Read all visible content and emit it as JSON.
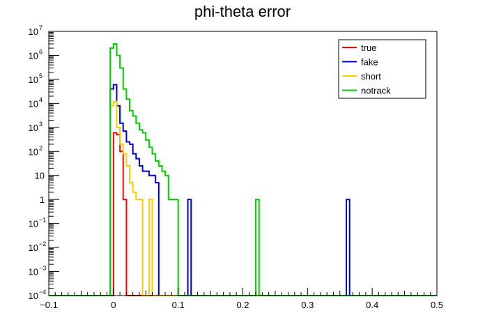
{
  "chart_data": {
    "type": "line",
    "title": "phi-theta error",
    "xlabel": "",
    "ylabel": "",
    "xlim": [
      -0.1,
      0.5
    ],
    "ylim_log10": [
      -4,
      7
    ],
    "y_scale": "log",
    "x_ticks": [
      {
        "value": -0.1,
        "label": "−0.1"
      },
      {
        "value": 0,
        "label": "0"
      },
      {
        "value": 0.1,
        "label": "0.1"
      },
      {
        "value": 0.2,
        "label": "0.2"
      },
      {
        "value": 0.3,
        "label": "0.3"
      },
      {
        "value": 0.4,
        "label": "0.4"
      },
      {
        "value": 0.5,
        "label": "0.5"
      }
    ],
    "y_ticks": [
      {
        "exp": -4,
        "base": "10",
        "sup": "−4"
      },
      {
        "exp": -3,
        "base": "10",
        "sup": "−3"
      },
      {
        "exp": -2,
        "base": "10",
        "sup": "−2"
      },
      {
        "exp": -1,
        "base": "10",
        "sup": "−1"
      },
      {
        "exp": 0,
        "base": "1",
        "sup": ""
      },
      {
        "exp": 1,
        "base": "10",
        "sup": ""
      },
      {
        "exp": 2,
        "base": "10",
        "sup": "2"
      },
      {
        "exp": 3,
        "base": "10",
        "sup": "3"
      },
      {
        "exp": 4,
        "base": "10",
        "sup": "4"
      },
      {
        "exp": 5,
        "base": "10",
        "sup": "5"
      },
      {
        "exp": 6,
        "base": "10",
        "sup": "6"
      },
      {
        "exp": 7,
        "base": "10",
        "sup": "7"
      }
    ],
    "bin_width": 0.005,
    "legend_position": "top-right",
    "series": [
      {
        "name": "true",
        "color": "#ff0000",
        "bins": [
          {
            "x": 0.0,
            "y": 600
          },
          {
            "x": 0.005,
            "y": 500
          },
          {
            "x": 0.01,
            "y": 100
          },
          {
            "x": 0.015,
            "y": 1
          }
        ]
      },
      {
        "name": "fake",
        "color": "#0000cc",
        "bins": [
          {
            "x": -0.005,
            "y": 40000
          },
          {
            "x": 0.0,
            "y": 60000
          },
          {
            "x": 0.005,
            "y": 8000
          },
          {
            "x": 0.01,
            "y": 1500
          },
          {
            "x": 0.015,
            "y": 700
          },
          {
            "x": 0.02,
            "y": 250
          },
          {
            "x": 0.025,
            "y": 200
          },
          {
            "x": 0.03,
            "y": 80
          },
          {
            "x": 0.035,
            "y": 50
          },
          {
            "x": 0.04,
            "y": 25
          },
          {
            "x": 0.045,
            "y": 15
          },
          {
            "x": 0.05,
            "y": 15
          },
          {
            "x": 0.055,
            "y": 10
          },
          {
            "x": 0.06,
            "y": 10
          },
          {
            "x": 0.065,
            "y": 5
          },
          {
            "x": 0.115,
            "y": 1
          },
          {
            "x": 0.36,
            "y": 1
          }
        ]
      },
      {
        "name": "short",
        "color": "#ffcc00",
        "bins": [
          {
            "x": -0.005,
            "y": 8000
          },
          {
            "x": 0.0,
            "y": 12000
          },
          {
            "x": 0.005,
            "y": 1000
          },
          {
            "x": 0.01,
            "y": 200
          },
          {
            "x": 0.015,
            "y": 80
          },
          {
            "x": 0.02,
            "y": 25
          },
          {
            "x": 0.025,
            "y": 5
          },
          {
            "x": 0.03,
            "y": 2
          },
          {
            "x": 0.035,
            "y": 1
          },
          {
            "x": 0.04,
            "y": 1
          },
          {
            "x": 0.055,
            "y": 1
          }
        ]
      },
      {
        "name": "notrack",
        "color": "#00cc00",
        "bins": [
          {
            "x": -0.005,
            "y": 2000000
          },
          {
            "x": 0.0,
            "y": 3000000
          },
          {
            "x": 0.005,
            "y": 1000000
          },
          {
            "x": 0.01,
            "y": 300000
          },
          {
            "x": 0.015,
            "y": 40000
          },
          {
            "x": 0.02,
            "y": 15000
          },
          {
            "x": 0.025,
            "y": 5000
          },
          {
            "x": 0.03,
            "y": 3000
          },
          {
            "x": 0.035,
            "y": 1500
          },
          {
            "x": 0.04,
            "y": 800
          },
          {
            "x": 0.045,
            "y": 600
          },
          {
            "x": 0.05,
            "y": 300
          },
          {
            "x": 0.055,
            "y": 150
          },
          {
            "x": 0.06,
            "y": 80
          },
          {
            "x": 0.065,
            "y": 40
          },
          {
            "x": 0.07,
            "y": 25
          },
          {
            "x": 0.075,
            "y": 15
          },
          {
            "x": 0.08,
            "y": 10
          },
          {
            "x": 0.085,
            "y": 1
          },
          {
            "x": 0.09,
            "y": 1
          },
          {
            "x": 0.095,
            "y": 1
          },
          {
            "x": 0.22,
            "y": 1
          }
        ]
      }
    ]
  }
}
